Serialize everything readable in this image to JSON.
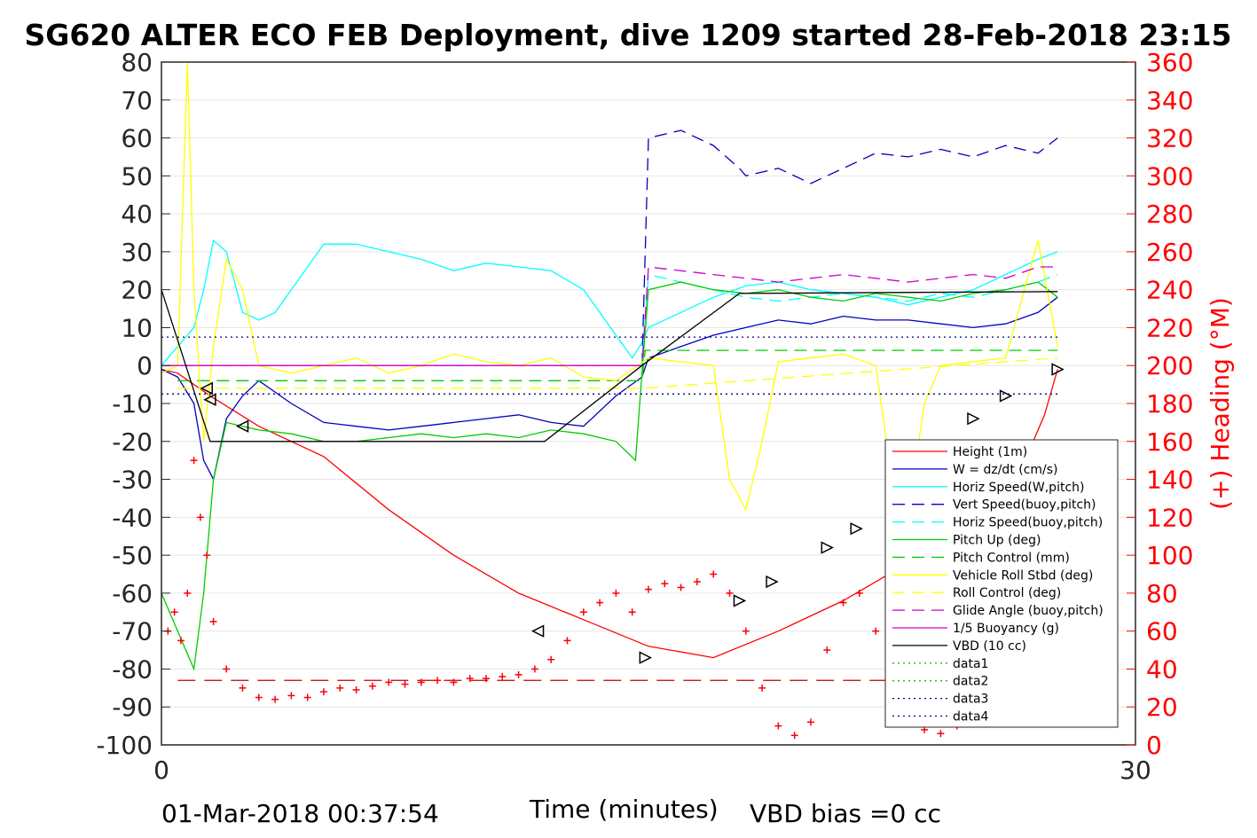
{
  "chart_data": {
    "type": "line",
    "title": "SG620 ALTER ECO FEB Deployment, dive 1209 started 28-Feb-2018 23:15",
    "xlabel": "Time (minutes)",
    "ylabel_right": "(+) Heading (°M)",
    "xlim": [
      0,
      30
    ],
    "ylim": [
      -100,
      80
    ],
    "ylim_right": [
      0,
      360
    ],
    "x_ticks": [
      "0",
      "30"
    ],
    "y_ticks": [
      "80",
      "70",
      "60",
      "50",
      "40",
      "30",
      "20",
      "10",
      "0",
      "-10",
      "-20",
      "-30",
      "-40",
      "-50",
      "-60",
      "-70",
      "-80",
      "-90",
      "-100"
    ],
    "y_ticks_right": [
      "360",
      "340",
      "320",
      "300",
      "280",
      "260",
      "240",
      "220",
      "200",
      "180",
      "160",
      "140",
      "120",
      "100",
      "80",
      "60",
      "40",
      "20",
      "0"
    ],
    "footer_left": "01-Mar-2018 00:37:54",
    "footer_right": "VBD bias =0 cc",
    "legend_position": "lower-right",
    "grid": "horizontal",
    "colors": {
      "height": "#ff0000",
      "w": "#0000c0",
      "horiz_speed": "#00ffff",
      "pitch": "#00cc00",
      "roll": "#ffff00",
      "glide": "#cc00cc",
      "vbd": "#000000",
      "heading": "#ff0000"
    },
    "series": [
      {
        "name": "Height (1m)",
        "color": "#ff0000",
        "dash": "",
        "x": [
          0,
          0.5,
          1.5,
          3,
          5,
          7,
          9,
          11,
          13,
          15,
          17,
          19,
          21,
          23,
          25,
          26.5,
          27.2,
          27.6
        ],
        "y": [
          -1,
          -2,
          -8,
          -16,
          -24,
          -38,
          -50,
          -60,
          -67,
          -74,
          -77,
          -70,
          -62,
          -52,
          -39,
          -27,
          -13,
          -1
        ]
      },
      {
        "name": "W = dz/dt (cm/s)",
        "color": "#0000c0",
        "dash": "",
        "x": [
          0,
          0.5,
          1,
          1.3,
          1.6,
          2,
          2.5,
          3,
          4,
          5,
          6,
          7,
          8,
          9,
          10,
          11,
          12,
          13,
          14,
          14.8,
          15,
          16,
          17,
          18,
          19,
          20,
          21,
          22,
          23,
          24,
          25,
          26,
          27,
          27.6
        ],
        "y": [
          -1,
          -3,
          -10,
          -25,
          -30,
          -14,
          -8,
          -4,
          -10,
          -15,
          -16,
          -17,
          -16,
          -15,
          -14,
          -13,
          -15,
          -16,
          -8,
          -3,
          2,
          5,
          8,
          10,
          12,
          11,
          13,
          12,
          12,
          11,
          10,
          11,
          14,
          18
        ]
      },
      {
        "name": "Horiz Speed(W,pitch)",
        "color": "#00ffff",
        "dash": "",
        "x": [
          0,
          0.5,
          1,
          1.3,
          1.6,
          2,
          2.5,
          3,
          3.5,
          4,
          5,
          6,
          7,
          8,
          9,
          10,
          11,
          12,
          13,
          14,
          14.5,
          14.8,
          15,
          16,
          17,
          18,
          19,
          20,
          21,
          22,
          23,
          24,
          25,
          26,
          27,
          27.6
        ],
        "y": [
          0,
          5,
          10,
          20,
          33,
          30,
          14,
          12,
          14,
          20,
          32,
          32,
          30,
          28,
          25,
          27,
          26,
          25,
          20,
          8,
          2,
          6,
          10,
          14,
          18,
          21,
          22,
          20,
          19,
          18,
          16,
          18,
          20,
          24,
          28,
          30
        ]
      },
      {
        "name": "Vert Speed(buoy,pitch)",
        "color": "#0000c0",
        "dash": "14,8",
        "x": [
          14.8,
          15,
          16,
          17,
          17.8,
          18,
          19,
          20,
          21,
          22,
          23,
          24,
          25,
          26,
          27,
          27.6
        ],
        "y": [
          0,
          60,
          62,
          58,
          52,
          50,
          52,
          48,
          52,
          56,
          55,
          57,
          55,
          58,
          56,
          60
        ]
      },
      {
        "name": "Horiz Speed(buoy,pitch)",
        "color": "#00ffff",
        "dash": "14,8",
        "x": [
          14.8,
          15,
          16,
          17,
          18,
          19,
          20,
          21,
          22,
          23,
          24,
          25,
          26,
          27,
          27.6
        ],
        "y": [
          0,
          24,
          22,
          20,
          18,
          17,
          18,
          19,
          18,
          17,
          19,
          18,
          20,
          22,
          24
        ]
      },
      {
        "name": "Pitch Up (deg)",
        "color": "#00cc00",
        "dash": "",
        "x": [
          0,
          0.5,
          1,
          1.3,
          1.6,
          2,
          2.5,
          3,
          4,
          5,
          6,
          7,
          8,
          9,
          10,
          11,
          12,
          13,
          14,
          14.6,
          14.8,
          15,
          16,
          17,
          18,
          19,
          20,
          21,
          22,
          23,
          24,
          25,
          26,
          27,
          27.6
        ],
        "y": [
          -60,
          -70,
          -80,
          -60,
          -30,
          -15,
          -16,
          -17,
          -18,
          -20,
          -20,
          -19,
          -18,
          -19,
          -18,
          -19,
          -17,
          -18,
          -20,
          -25,
          -2,
          20,
          22,
          20,
          19,
          20,
          18,
          17,
          19,
          18,
          17,
          19,
          20,
          22,
          18
        ]
      },
      {
        "name": "Pitch Control (mm)",
        "color": "#00cc00",
        "dash": "14,8",
        "x": [
          0.5,
          14.8,
          14.9,
          27.6
        ],
        "y": [
          -4,
          -4,
          4,
          4
        ]
      },
      {
        "name": "Vehicle Roll Stbd (deg)",
        "color": "#ffff00",
        "dash": "",
        "x": [
          0,
          0.5,
          0.8,
          1,
          1.3,
          1.6,
          2,
          2.5,
          3,
          4,
          5,
          6,
          7,
          8,
          9,
          10,
          11,
          12,
          13,
          14,
          15,
          16,
          17,
          17.5,
          18,
          18.5,
          19,
          20,
          21,
          22,
          22.5,
          23,
          23.5,
          24,
          25,
          26,
          27,
          27.6
        ],
        "y": [
          -2,
          0,
          80,
          20,
          -20,
          5,
          28,
          20,
          0,
          -2,
          0,
          2,
          -2,
          0,
          3,
          1,
          0,
          2,
          -3,
          -4,
          2,
          1,
          0,
          -30,
          -38,
          -20,
          1,
          2,
          3,
          0,
          -30,
          -38,
          -10,
          0,
          1,
          2,
          33,
          5
        ]
      },
      {
        "name": "Roll Control (deg)",
        "color": "#ffff00",
        "dash": "14,8",
        "x": [
          0.5,
          14.8,
          27.6
        ],
        "y": [
          -6,
          -6,
          2
        ]
      },
      {
        "name": "Glide Angle (buoy,pitch)",
        "color": "#cc00cc",
        "dash": "14,8",
        "x": [
          0,
          14.8,
          15,
          16,
          17,
          18,
          19,
          20,
          21,
          22,
          23,
          24,
          25,
          26,
          27,
          27.6
        ],
        "y": [
          0,
          0,
          26,
          25,
          24,
          23,
          22,
          23,
          24,
          23,
          22,
          23,
          24,
          23,
          26,
          26
        ]
      },
      {
        "name": "1/5 Buoyancy (g)",
        "color": "#cc00cc",
        "dash": "",
        "x": [
          0,
          14.8
        ],
        "y": [
          0,
          0
        ]
      },
      {
        "name": "VBD (10 cc)",
        "color": "#000000",
        "dash": "",
        "x": [
          0,
          1.5,
          11.8,
          14.8,
          17.8,
          27.6
        ],
        "y": [
          20,
          -20,
          -20,
          0,
          19,
          19.5
        ]
      },
      {
        "name": "data1",
        "color": "#00cc00",
        "dash": "2,4",
        "x": [],
        "y": []
      },
      {
        "name": "data2",
        "color": "#00cc00",
        "dash": "2,4",
        "x": [],
        "y": []
      },
      {
        "name": "data3",
        "color": "#000080",
        "dash": "2,4",
        "x": [
          0,
          27.6
        ],
        "y": [
          7.5,
          7.5
        ]
      },
      {
        "name": "data4",
        "color": "#000080",
        "dash": "2,4",
        "x": [
          0,
          27.6
        ],
        "y": [
          -7.5,
          -7.5
        ]
      }
    ],
    "reference_lines": [
      {
        "color": "#c00000",
        "dash": "20,10",
        "y_right": 34,
        "x": [
          0.5,
          27.6
        ]
      }
    ],
    "heading_points": {
      "x": [
        0.2,
        0.4,
        0.6,
        0.8,
        1.0,
        1.2,
        1.4,
        1.6,
        2,
        2.5,
        3,
        3.5,
        4,
        4.5,
        5,
        5.5,
        6,
        6.5,
        7,
        7.5,
        8,
        8.5,
        9,
        9.5,
        10,
        10.5,
        11,
        11.5,
        12,
        12.5,
        13,
        13.5,
        14,
        14.5,
        15,
        15.5,
        16,
        16.5,
        17,
        17.5,
        18,
        18.5,
        19,
        19.5,
        20,
        20.5,
        21,
        21.5,
        22,
        22.5,
        23,
        23.5,
        24,
        24.5,
        25,
        25.5,
        26
      ],
      "y_right": [
        60,
        70,
        55,
        80,
        150,
        120,
        100,
        65,
        40,
        30,
        25,
        24,
        26,
        25,
        28,
        30,
        29,
        31,
        33,
        32,
        33,
        34,
        33,
        35,
        35,
        36,
        37,
        40,
        45,
        55,
        70,
        75,
        80,
        70,
        82,
        85,
        83,
        86,
        90,
        80,
        60,
        30,
        10,
        5,
        12,
        50,
        75,
        80,
        60,
        30,
        15,
        8,
        6,
        10,
        15,
        20,
        25
      ]
    },
    "markers": {
      "x": [
        1.4,
        1.5,
        2.5,
        11.6,
        14.9,
        17.8,
        18.8,
        20.5,
        21.4,
        22.5,
        23.5,
        25,
        26,
        27.6
      ],
      "y": [
        -6,
        -9,
        -16,
        -70,
        -77,
        -62,
        -57,
        -48,
        -43,
        -33,
        -26,
        -14,
        -8,
        -1
      ]
    }
  }
}
